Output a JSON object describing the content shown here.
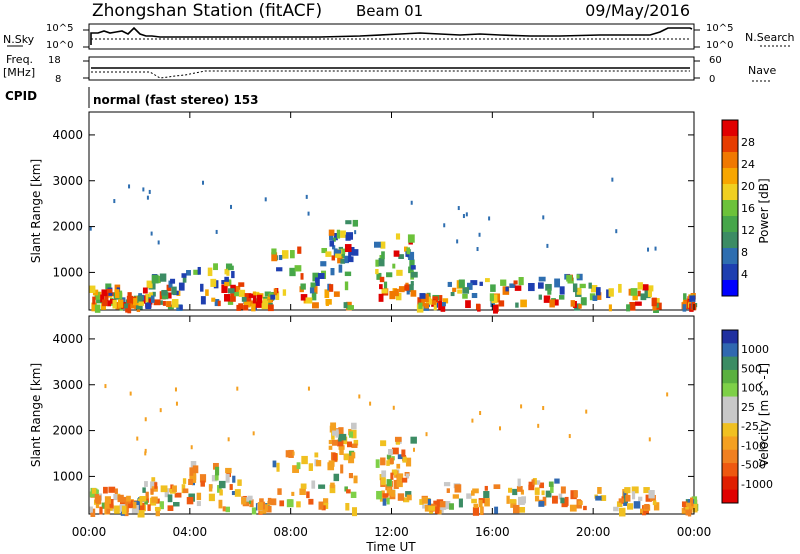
{
  "header": {
    "station": "Zhongshan Station (fitACF)",
    "beam": "Beam 01",
    "date": "09/May/2016"
  },
  "strip_labels": {
    "nsky": "N.Sky",
    "nsky_ticks": [
      "10^5",
      "10^0"
    ],
    "nsearch": "N.Search",
    "nsearch_ticks": [
      "10^5",
      "10^0"
    ],
    "freq_line1": "Freq.",
    "freq_line2": "[MHz]",
    "freq_ticks": [
      "18",
      "8"
    ],
    "nave": "Nave",
    "nave_ticks": [
      "60",
      "0"
    ],
    "cpid_label": "CPID",
    "cpid_value": "normal (fast stereo) 153"
  },
  "chart_data": [
    {
      "type": "heatmap",
      "name": "power",
      "ylabel": "Slant Range [km]",
      "y_ticks": [
        1000,
        2000,
        3000,
        4000
      ],
      "ylim": [
        180,
        4500
      ],
      "colorbar_label": "Power [dB]",
      "colorbar_ticks": [
        "4",
        "8",
        "12",
        "16",
        "20",
        "24",
        "28"
      ],
      "colorbar_colors": [
        "#0000ff",
        "#1e3fb0",
        "#2e6eb0",
        "#3c8c64",
        "#46a64a",
        "#6cc23a",
        "#f0d020",
        "#f7a600",
        "#f07800",
        "#e63c00",
        "#e00000"
      ]
    },
    {
      "type": "heatmap",
      "name": "velocity",
      "ylabel": "Slant Range [km]",
      "y_ticks": [
        1000,
        2000,
        3000,
        4000
      ],
      "ylim": [
        180,
        4500
      ],
      "colorbar_label": "Velocity [m s^-1]",
      "colorbar_ticks": [
        "1000",
        "500",
        "100",
        "25",
        "-25",
        "-100",
        "-500",
        "-1000"
      ],
      "colorbar_colors": [
        "#2030a0",
        "#3068b0",
        "#3c8c64",
        "#5ab040",
        "#7ed048",
        "#c8c8c8",
        "#c8c8c8",
        "#f0c020",
        "#f4a020",
        "#f08020",
        "#ee5810",
        "#e02000",
        "#e00000"
      ]
    }
  ],
  "time_axis": {
    "title": "Time UT",
    "ticks": [
      "00:00",
      "04:00",
      "08:00",
      "12:00",
      "16:00",
      "20:00",
      "00:00"
    ]
  }
}
